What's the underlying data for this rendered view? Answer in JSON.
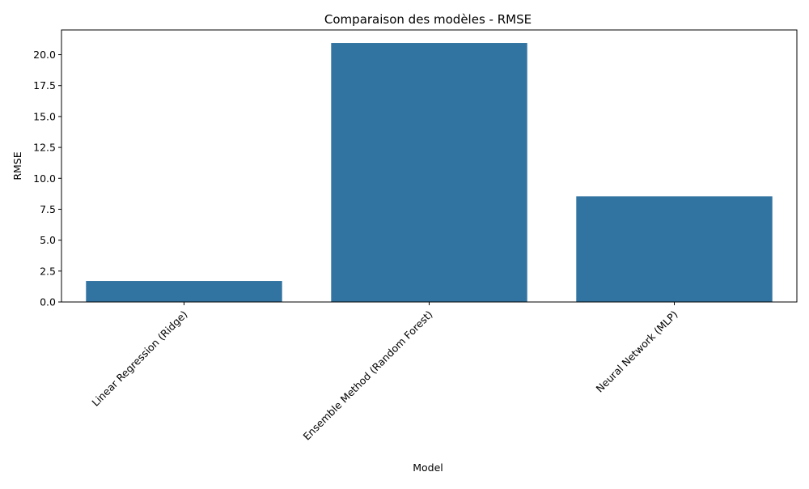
{
  "chart_data": {
    "type": "bar",
    "title": "Comparaison des modèles - RMSE",
    "xlabel": "Model",
    "ylabel": "RMSE",
    "categories": [
      "Linear Regression (Ridge)",
      "Ensemble Method (Random Forest)",
      "Neural Network (MLP)"
    ],
    "values": [
      1.7,
      20.95,
      8.55
    ],
    "ylim": [
      0,
      22.0
    ],
    "yticks": [
      "0.0",
      "2.5",
      "5.0",
      "7.5",
      "10.0",
      "12.5",
      "15.0",
      "17.5",
      "20.0"
    ],
    "grid": false,
    "legend": "none",
    "colors": {
      "bar": "#3274a1",
      "axis": "#000000",
      "background": "#ffffff"
    }
  }
}
